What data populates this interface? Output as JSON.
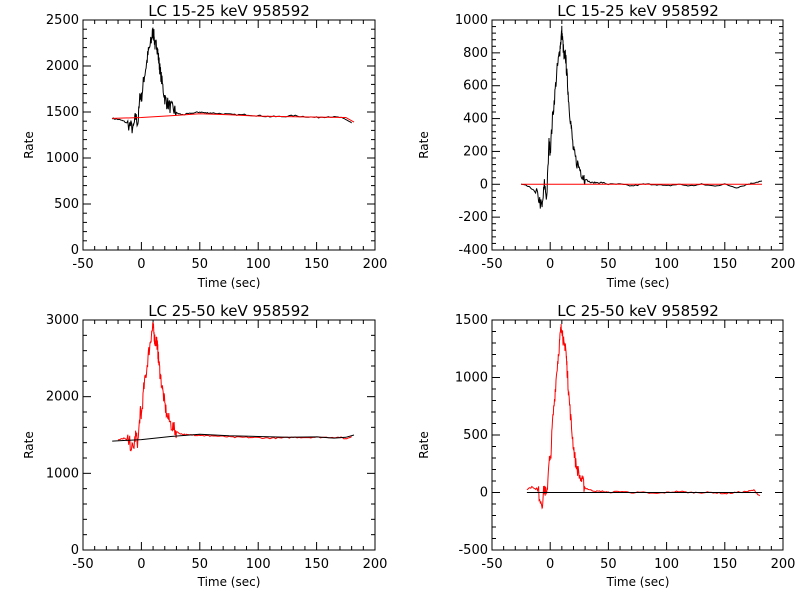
{
  "chart_data": [
    {
      "type": "line",
      "title": "LC 15-25 keV  958592",
      "xlabel": "Time (sec)",
      "ylabel": "Rate",
      "xlim": [
        -50,
        200
      ],
      "ylim": [
        0,
        2500
      ],
      "xticks": [
        -50,
        0,
        50,
        100,
        150,
        200
      ],
      "yticks": [
        0,
        500,
        1000,
        1500,
        2000,
        2500
      ],
      "grid": false,
      "series": [
        {
          "color": "#000000",
          "style": "noisy-lightcurve",
          "x": [
            -25,
            -20,
            -15,
            -10,
            -7,
            -5,
            -3,
            -1,
            0,
            2,
            4,
            6,
            8,
            9,
            10,
            11,
            12,
            13,
            14,
            15,
            16,
            18,
            20,
            22,
            25,
            28,
            30,
            35,
            40,
            45,
            50,
            55,
            60,
            70,
            80,
            90,
            100,
            110,
            120,
            130,
            140,
            150,
            160,
            170,
            175,
            180
          ],
          "y": [
            1430,
            1420,
            1400,
            1360,
            1310,
            1450,
            1380,
            1700,
            1650,
            1850,
            2000,
            2150,
            2250,
            2320,
            2380,
            2300,
            2200,
            2250,
            2150,
            2050,
            1950,
            1800,
            1650,
            1600,
            1550,
            1520,
            1490,
            1470,
            1480,
            1490,
            1500,
            1490,
            1490,
            1480,
            1470,
            1470,
            1460,
            1450,
            1450,
            1460,
            1450,
            1440,
            1450,
            1440,
            1420,
            1380
          ]
        },
        {
          "color": "#ff0000",
          "style": "background-fit",
          "x": [
            -25,
            0,
            25,
            50,
            75,
            100,
            125,
            150,
            175,
            182
          ],
          "y": [
            1430,
            1440,
            1460,
            1480,
            1470,
            1455,
            1450,
            1445,
            1440,
            1390
          ]
        }
      ]
    },
    {
      "type": "line",
      "title": "LC 15-25 keV  958592",
      "xlabel": "Time (sec)",
      "ylabel": "Rate",
      "xlim": [
        -50,
        200
      ],
      "ylim": [
        -400,
        1000
      ],
      "xticks": [
        -50,
        0,
        50,
        100,
        150,
        200
      ],
      "yticks": [
        -400,
        -200,
        0,
        200,
        400,
        600,
        800,
        1000
      ],
      "grid": false,
      "series": [
        {
          "color": "#000000",
          "style": "noisy-lightcurve",
          "x": [
            -25,
            -20,
            -15,
            -10,
            -7,
            -5,
            -3,
            -1,
            0,
            2,
            4,
            6,
            8,
            9,
            10,
            11,
            12,
            13,
            14,
            15,
            16,
            18,
            20,
            22,
            25,
            28,
            30,
            35,
            40,
            45,
            50,
            60,
            70,
            80,
            90,
            100,
            110,
            120,
            130,
            140,
            150,
            160,
            170,
            175,
            182
          ],
          "y": [
            0,
            -10,
            -30,
            -80,
            -150,
            0,
            -80,
            250,
            200,
            400,
            550,
            700,
            800,
            870,
            930,
            850,
            750,
            800,
            700,
            600,
            500,
            350,
            200,
            150,
            100,
            60,
            30,
            10,
            10,
            10,
            0,
            0,
            -10,
            0,
            0,
            -10,
            0,
            -10,
            0,
            -10,
            0,
            -20,
            0,
            10,
            20
          ]
        },
        {
          "color": "#ff0000",
          "style": "background-fit",
          "x": [
            -25,
            182
          ],
          "y": [
            0,
            0
          ]
        }
      ]
    },
    {
      "type": "line",
      "title": "LC 25-50 keV  958592",
      "xlabel": "Time (sec)",
      "ylabel": "Rate",
      "xlim": [
        -50,
        200
      ],
      "ylim": [
        0,
        3000
      ],
      "xticks": [
        -50,
        0,
        50,
        100,
        150,
        200
      ],
      "yticks": [
        0,
        1000,
        2000,
        3000
      ],
      "grid": false,
      "series": [
        {
          "color": "#ff0000",
          "style": "noisy-lightcurve",
          "x": [
            -20,
            -15,
            -10,
            -7,
            -5,
            -3,
            -1,
            0,
            2,
            4,
            6,
            8,
            9,
            10,
            11,
            12,
            13,
            14,
            15,
            16,
            18,
            20,
            22,
            25,
            28,
            30,
            35,
            40,
            45,
            50,
            55,
            60,
            70,
            80,
            90,
            100,
            110,
            120,
            130,
            140,
            150,
            160,
            170,
            175,
            180
          ],
          "y": [
            1430,
            1460,
            1400,
            1300,
            1500,
            1400,
            1800,
            1750,
            2100,
            2300,
            2550,
            2750,
            2850,
            2900,
            2800,
            2700,
            2750,
            2600,
            2450,
            2300,
            2100,
            1900,
            1750,
            1650,
            1580,
            1540,
            1510,
            1500,
            1500,
            1500,
            1490,
            1490,
            1480,
            1470,
            1470,
            1465,
            1460,
            1460,
            1470,
            1470,
            1470,
            1470,
            1470,
            1450,
            1480
          ]
        },
        {
          "color": "#000000",
          "style": "background-fit",
          "x": [
            -25,
            0,
            25,
            50,
            75,
            100,
            125,
            150,
            165,
            175,
            182
          ],
          "y": [
            1420,
            1440,
            1480,
            1510,
            1490,
            1480,
            1470,
            1475,
            1460,
            1470,
            1500
          ]
        }
      ]
    },
    {
      "type": "line",
      "title": "LC 25-50 keV  958592",
      "xlabel": "Time (sec)",
      "ylabel": "Rate",
      "xlim": [
        -50,
        200
      ],
      "ylim": [
        -500,
        1500
      ],
      "xticks": [
        -50,
        0,
        50,
        100,
        150,
        200
      ],
      "yticks": [
        -500,
        0,
        500,
        1000,
        1500
      ],
      "grid": false,
      "series": [
        {
          "color": "#ff0000",
          "style": "noisy-lightcurve",
          "x": [
            -20,
            -15,
            -10,
            -7,
            -5,
            -3,
            -1,
            0,
            2,
            4,
            6,
            8,
            9,
            10,
            11,
            12,
            13,
            14,
            15,
            16,
            18,
            20,
            22,
            25,
            28,
            30,
            35,
            40,
            45,
            50,
            60,
            70,
            80,
            90,
            100,
            110,
            120,
            130,
            140,
            150,
            160,
            170,
            175,
            180
          ],
          "y": [
            30,
            50,
            0,
            -100,
            50,
            -50,
            300,
            250,
            600,
            850,
            1100,
            1300,
            1400,
            1450,
            1350,
            1250,
            1300,
            1150,
            1000,
            850,
            600,
            400,
            250,
            150,
            80,
            40,
            20,
            10,
            10,
            0,
            10,
            0,
            0,
            -10,
            0,
            10,
            0,
            0,
            0,
            -10,
            0,
            10,
            20,
            -30
          ]
        },
        {
          "color": "#000000",
          "style": "background-fit",
          "x": [
            -20,
            182
          ],
          "y": [
            0,
            0
          ]
        }
      ]
    }
  ]
}
